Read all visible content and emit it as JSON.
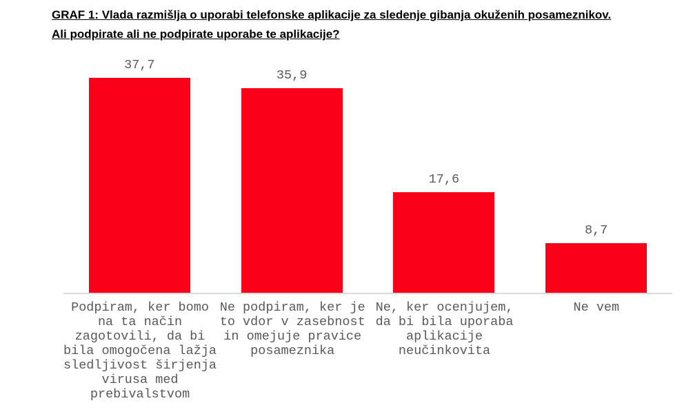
{
  "title": {
    "line1": "GRAF 1: Vlada razmišlja o uporabi telefonske aplikacije za sledenje gibanja okuženih posameznikov.",
    "line2": "Ali podpirate ali ne podpirate uporabe te aplikacije?"
  },
  "chart_data": {
    "type": "bar",
    "title": "GRAF 1: Vlada razmišlja o uporabi telefonske aplikacije za sledenje gibanja okuženih posameznikov. Ali podpirate ali ne podpirate uporabe te aplikacije?",
    "categories": [
      "Podpiram, ker bomo\nna ta način\nzagotovili, da bi\nbila omogočena lažja\nsledljivost širjenja\nvirusa med\nprebivalstvom",
      "Ne podpiram, ker je\nto vdor v zasebnost\nin omejuje pravice\nposameznika",
      "Ne, ker ocenjujem,\nda bi bila uporaba\naplikacije\nneučinkovita",
      "Ne vem"
    ],
    "values": [
      37.7,
      35.9,
      17.6,
      8.7
    ],
    "value_labels": [
      "37,7",
      "35,9",
      "17,6",
      "8,7"
    ],
    "xlabel": "",
    "ylabel": "",
    "ylim": [
      0,
      40
    ],
    "grid": false,
    "legend": false,
    "bar_color": "#fa0019",
    "text_color": "#595959",
    "axis_line_color": "#d9d9d9",
    "title_color": "#000000"
  }
}
